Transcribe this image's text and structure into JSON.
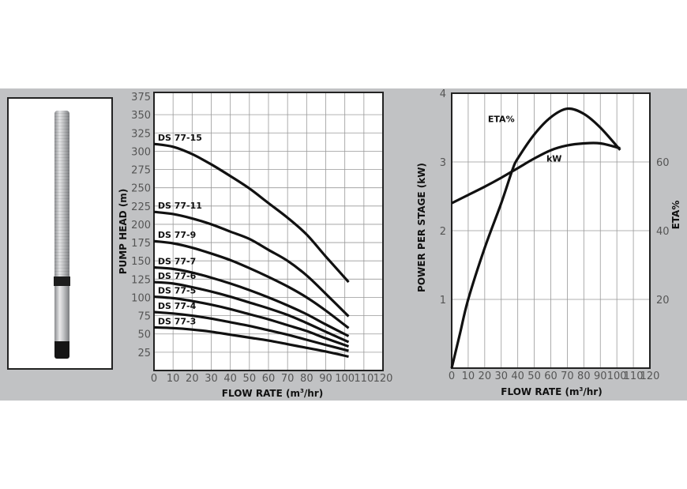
{
  "chart_data": [
    {
      "type": "line",
      "title": "",
      "xlabel": "FLOW RATE (m³/hr)",
      "ylabel": "PUMP HEAD (m)",
      "xlim": [
        0,
        120
      ],
      "ylim": [
        0,
        375
      ],
      "xticks": [
        0,
        10,
        20,
        30,
        40,
        50,
        60,
        70,
        80,
        90,
        100,
        110,
        120
      ],
      "yticks": [
        25,
        50,
        75,
        100,
        125,
        150,
        175,
        200,
        225,
        250,
        275,
        300,
        325,
        350,
        375
      ],
      "grid": true,
      "x": [
        0,
        10,
        20,
        30,
        40,
        50,
        60,
        70,
        80,
        90,
        102
      ],
      "series": [
        {
          "name": "DS 77-15",
          "values": [
            310,
            306,
            296,
            282,
            266,
            249,
            229,
            209,
            186,
            156,
            121
          ]
        },
        {
          "name": "DS 77-11",
          "values": [
            217,
            214,
            208,
            200,
            190,
            180,
            165,
            150,
            130,
            105,
            74
          ]
        },
        {
          "name": "DS 77-9",
          "values": [
            177,
            174,
            168,
            160,
            151,
            140,
            128,
            115,
            100,
            82,
            58
          ]
        },
        {
          "name": "DS 77-7",
          "values": [
            141,
            139,
            134,
            127,
            119,
            110,
            100,
            89,
            77,
            63,
            47
          ]
        },
        {
          "name": "DS 77-6",
          "values": [
            121,
            119,
            114,
            108,
            101,
            93,
            85,
            76,
            65,
            53,
            39
          ]
        },
        {
          "name": "DS 77-5",
          "values": [
            101,
            99,
            95,
            90,
            84,
            77,
            70,
            62,
            54,
            44,
            33
          ]
        },
        {
          "name": "DS 77-4",
          "values": [
            80,
            78,
            75,
            71,
            66,
            61,
            55,
            49,
            42,
            35,
            27
          ]
        },
        {
          "name": "DS 77-3",
          "values": [
            59,
            58,
            56,
            53,
            49,
            45,
            41,
            36,
            31,
            26,
            19
          ]
        }
      ]
    },
    {
      "type": "line",
      "title": "",
      "xlabel": "FLOW RATE (m³/hr)",
      "ylabel": "POWER PER STAGE (kW)",
      "y2label": "ETA%",
      "xlim": [
        0,
        120
      ],
      "ylim": [
        0,
        4
      ],
      "y2lim": [
        0,
        80
      ],
      "xticks": [
        0,
        10,
        20,
        30,
        40,
        50,
        60,
        70,
        80,
        90,
        100,
        110,
        120
      ],
      "yticks": [
        1,
        2,
        3,
        4
      ],
      "y2ticks": [
        20,
        40,
        60
      ],
      "grid": true,
      "x": [
        0,
        10,
        20,
        30,
        40,
        50,
        60,
        70,
        80,
        90,
        102
      ],
      "series": [
        {
          "name": "kW",
          "axis": "left",
          "values": [
            2.4,
            2.52,
            2.64,
            2.77,
            2.91,
            3.05,
            3.17,
            3.24,
            3.27,
            3.27,
            3.2
          ]
        },
        {
          "name": "ETA%",
          "axis": "right",
          "x": [
            0,
            5,
            10,
            20,
            30,
            37,
            40,
            50,
            60,
            70,
            80,
            90,
            102
          ],
          "values": [
            0,
            10,
            20,
            35,
            48,
            58,
            61,
            68,
            73,
            75.5,
            74,
            70,
            63.5
          ]
        }
      ]
    }
  ]
}
